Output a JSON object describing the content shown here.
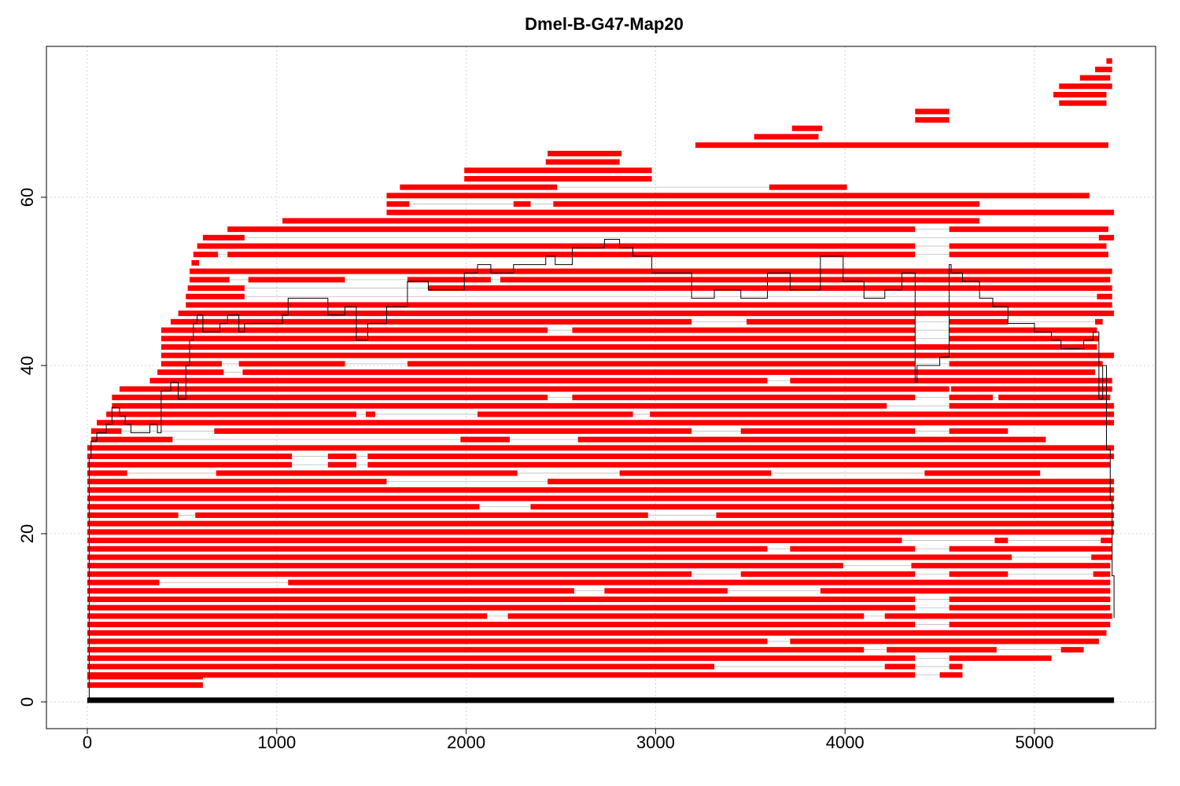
{
  "chart_data": {
    "type": "bar",
    "title": "Dmel-B-G47-Map20",
    "xlabel": "",
    "ylabel": "",
    "xlim": [
      0,
      5600
    ],
    "ylim": [
      0,
      75
    ],
    "xticks": [
      0,
      1000,
      2000,
      3000,
      4000,
      5000
    ],
    "yticks": [
      0,
      20,
      40,
      60
    ],
    "grid": true,
    "colors": {
      "segment": "#ff0000",
      "baseline": "#000000",
      "coverage": "#000000",
      "gap": "#bbbbbb"
    },
    "baseline": {
      "y": 0.2,
      "x0": 0,
      "x1": 5420
    },
    "reads": [
      {
        "y": 2.0,
        "segs": [
          [
            0,
            610
          ]
        ]
      },
      {
        "y": 3.0,
        "segs": [
          [
            0,
            610
          ]
        ]
      },
      {
        "y": 3.2,
        "segs": [
          [
            0,
            4370
          ],
          [
            4500,
            4620
          ]
        ]
      },
      {
        "y": 4.2,
        "segs": [
          [
            0,
            3310
          ],
          [
            4210,
            4370
          ],
          [
            4550,
            4620
          ]
        ]
      },
      {
        "y": 5.2,
        "segs": [
          [
            0,
            4370
          ],
          [
            4550,
            5090
          ]
        ]
      },
      {
        "y": 6.2,
        "segs": [
          [
            0,
            4100
          ],
          [
            4220,
            4800
          ],
          [
            5140,
            5260
          ]
        ]
      },
      {
        "y": 7.2,
        "segs": [
          [
            0,
            3590
          ],
          [
            3710,
            5340
          ]
        ]
      },
      {
        "y": 8.2,
        "segs": [
          [
            0,
            5380
          ]
        ]
      },
      {
        "y": 9.2,
        "segs": [
          [
            0,
            4370
          ],
          [
            4550,
            5400
          ]
        ]
      },
      {
        "y": 10.2,
        "segs": [
          [
            0,
            2110
          ],
          [
            2220,
            4100
          ],
          [
            4210,
            5410
          ]
        ]
      },
      {
        "y": 11.2,
        "segs": [
          [
            0,
            4370
          ],
          [
            4550,
            5400
          ]
        ]
      },
      {
        "y": 12.2,
        "segs": [
          [
            0,
            4370
          ],
          [
            4550,
            5400
          ]
        ]
      },
      {
        "y": 13.2,
        "segs": [
          [
            0,
            2570
          ],
          [
            2730,
            3380
          ],
          [
            3870,
            5400
          ]
        ]
      },
      {
        "y": 14.2,
        "segs": [
          [
            0,
            380
          ],
          [
            1060,
            5400
          ]
        ]
      },
      {
        "y": 15.2,
        "segs": [
          [
            0,
            3190
          ],
          [
            3450,
            4370
          ],
          [
            4550,
            4860
          ],
          [
            5310,
            5400
          ]
        ]
      },
      {
        "y": 16.2,
        "segs": [
          [
            0,
            3990
          ],
          [
            4350,
            5400
          ]
        ]
      },
      {
        "y": 17.2,
        "segs": [
          [
            0,
            4880
          ],
          [
            5300,
            5410
          ]
        ]
      },
      {
        "y": 18.2,
        "segs": [
          [
            0,
            3590
          ],
          [
            3710,
            4370
          ],
          [
            4550,
            5410
          ]
        ]
      },
      {
        "y": 19.2,
        "segs": [
          [
            0,
            4300
          ],
          [
            4790,
            4860
          ],
          [
            5350,
            5410
          ]
        ]
      },
      {
        "y": 20.2,
        "segs": [
          [
            0,
            5420
          ]
        ]
      },
      {
        "y": 21.2,
        "segs": [
          [
            0,
            5420
          ]
        ]
      },
      {
        "y": 22.2,
        "segs": [
          [
            0,
            480
          ],
          [
            570,
            2960
          ],
          [
            3320,
            5420
          ]
        ]
      },
      {
        "y": 23.2,
        "segs": [
          [
            0,
            2070
          ],
          [
            2340,
            5420
          ]
        ]
      },
      {
        "y": 24.2,
        "segs": [
          [
            0,
            5420
          ]
        ]
      },
      {
        "y": 25.2,
        "segs": [
          [
            0,
            5420
          ]
        ]
      },
      {
        "y": 26.2,
        "segs": [
          [
            0,
            1580
          ],
          [
            2430,
            5420
          ]
        ]
      },
      {
        "y": 27.2,
        "segs": [
          [
            0,
            210
          ],
          [
            680,
            2270
          ],
          [
            2810,
            3610
          ],
          [
            4420,
            5030
          ]
        ]
      },
      {
        "y": 28.2,
        "segs": [
          [
            0,
            1080
          ],
          [
            1270,
            1420
          ],
          [
            1480,
            5400
          ]
        ]
      },
      {
        "y": 29.2,
        "segs": [
          [
            0,
            1080
          ],
          [
            1270,
            1420
          ],
          [
            1480,
            5420
          ]
        ]
      },
      {
        "y": 30.2,
        "segs": [
          [
            0,
            5420
          ]
        ]
      },
      {
        "y": 31.2,
        "segs": [
          [
            20,
            450
          ],
          [
            1970,
            2230
          ],
          [
            2590,
            5060
          ]
        ]
      },
      {
        "y": 32.2,
        "segs": [
          [
            20,
            180
          ],
          [
            670,
            3190
          ],
          [
            3450,
            4370
          ],
          [
            4550,
            4860
          ]
        ]
      },
      {
        "y": 33.2,
        "segs": [
          [
            50,
            5420
          ]
        ]
      },
      {
        "y": 34.2,
        "segs": [
          [
            100,
            1420
          ],
          [
            1470,
            1520
          ],
          [
            2060,
            2880
          ],
          [
            2970,
            5420
          ]
        ]
      },
      {
        "y": 35.2,
        "segs": [
          [
            130,
            4220
          ],
          [
            4550,
            5420
          ]
        ]
      },
      {
        "y": 36.2,
        "segs": [
          [
            130,
            2430
          ],
          [
            2560,
            4370
          ],
          [
            4550,
            4780
          ],
          [
            4810,
            5400
          ]
        ]
      },
      {
        "y": 37.2,
        "segs": [
          [
            170,
            4550
          ],
          [
            4560,
            5410
          ]
        ]
      },
      {
        "y": 38.2,
        "segs": [
          [
            330,
            3590
          ],
          [
            3710,
            5410
          ]
        ]
      },
      {
        "y": 39.2,
        "segs": [
          [
            370,
            720
          ],
          [
            820,
            5320
          ]
        ]
      },
      {
        "y": 40.2,
        "segs": [
          [
            390,
            710
          ],
          [
            800,
            1360
          ],
          [
            1690,
            4370
          ],
          [
            4550,
            5360
          ]
        ]
      },
      {
        "y": 41.2,
        "segs": [
          [
            390,
            5420
          ]
        ]
      },
      {
        "y": 42.2,
        "segs": [
          [
            390,
            5330
          ]
        ]
      },
      {
        "y": 43.2,
        "segs": [
          [
            390,
            4370
          ],
          [
            4550,
            5340
          ]
        ]
      },
      {
        "y": 44.2,
        "segs": [
          [
            390,
            2430
          ],
          [
            2560,
            4370
          ],
          [
            4550,
            5330
          ]
        ]
      },
      {
        "y": 45.2,
        "segs": [
          [
            440,
            3190
          ],
          [
            3480,
            4370
          ],
          [
            4550,
            4860
          ],
          [
            5320,
            5360
          ]
        ]
      },
      {
        "y": 46.2,
        "segs": [
          [
            480,
            5420
          ]
        ]
      },
      {
        "y": 47.2,
        "segs": [
          [
            520,
            5410
          ]
        ]
      },
      {
        "y": 48.2,
        "segs": [
          [
            520,
            830
          ],
          [
            5330,
            5410
          ]
        ]
      },
      {
        "y": 49.2,
        "segs": [
          [
            530,
            830
          ],
          [
            1800,
            5410
          ]
        ]
      },
      {
        "y": 50.2,
        "segs": [
          [
            540,
            750
          ],
          [
            850,
            1360
          ],
          [
            1690,
            2130
          ],
          [
            2180,
            5400
          ]
        ]
      },
      {
        "y": 51.2,
        "segs": [
          [
            540,
            5410
          ]
        ]
      },
      {
        "y": 52.2,
        "segs": [
          [
            550,
            590
          ]
        ]
      },
      {
        "y": 53.2,
        "segs": [
          [
            560,
            690
          ],
          [
            740,
            4370
          ],
          [
            4550,
            5390
          ]
        ]
      },
      {
        "y": 54.2,
        "segs": [
          [
            580,
            4370
          ],
          [
            4550,
            5380
          ]
        ]
      },
      {
        "y": 55.2,
        "segs": [
          [
            610,
            830
          ],
          [
            5340,
            5420
          ]
        ]
      },
      {
        "y": 56.2,
        "segs": [
          [
            740,
            4370
          ],
          [
            4550,
            5390
          ]
        ]
      },
      {
        "y": 57.2,
        "segs": [
          [
            1030,
            4710
          ]
        ]
      },
      {
        "y": 58.2,
        "segs": [
          [
            1580,
            5420
          ]
        ]
      },
      {
        "y": 59.2,
        "segs": [
          [
            1580,
            1700
          ],
          [
            2250,
            2340
          ],
          [
            2460,
            4710
          ]
        ]
      },
      {
        "y": 60.2,
        "segs": [
          [
            1580,
            5290
          ]
        ]
      },
      {
        "y": 61.2,
        "segs": [
          [
            1650,
            2480
          ],
          [
            3600,
            4010
          ]
        ]
      },
      {
        "y": 62.2,
        "segs": [
          [
            1990,
            2980
          ]
        ]
      },
      {
        "y": 63.2,
        "segs": [
          [
            1990,
            2980
          ]
        ]
      },
      {
        "y": 64.2,
        "segs": [
          [
            2420,
            2810
          ]
        ]
      },
      {
        "y": 65.2,
        "segs": [
          [
            2430,
            2820
          ]
        ]
      },
      {
        "y": 66.2,
        "segs": [
          [
            3210,
            5390
          ]
        ]
      },
      {
        "y": 67.2,
        "segs": [
          [
            3520,
            3860
          ]
        ]
      },
      {
        "y": 68.2,
        "segs": [
          [
            3720,
            3880
          ]
        ]
      },
      {
        "y": 69.2,
        "segs": [
          [
            4370,
            4550
          ]
        ]
      },
      {
        "y": 70.2,
        "segs": [
          [
            4370,
            4550
          ]
        ]
      },
      {
        "y": 71.2,
        "segs": [
          [
            5130,
            5380
          ]
        ]
      },
      {
        "y": 72.2,
        "segs": [
          [
            5100,
            5380
          ]
        ]
      },
      {
        "y": 73.2,
        "segs": [
          [
            5130,
            5410
          ]
        ]
      },
      {
        "y": 74.2,
        "segs": [
          [
            5240,
            5400
          ]
        ]
      },
      {
        "y": 75.2,
        "segs": [
          [
            5320,
            5410
          ]
        ]
      },
      {
        "y": 76.2,
        "segs": [
          [
            5380,
            5410
          ]
        ]
      }
    ],
    "coverage": {
      "x": [
        0,
        10,
        20,
        50,
        100,
        130,
        170,
        200,
        230,
        330,
        370,
        390,
        440,
        480,
        520,
        540,
        560,
        580,
        610,
        700,
        740,
        800,
        830,
        1030,
        1060,
        1270,
        1360,
        1420,
        1480,
        1580,
        1690,
        1800,
        1990,
        2060,
        2130,
        2250,
        2420,
        2470,
        2560,
        2730,
        2810,
        2880,
        2980,
        3190,
        3310,
        3450,
        3590,
        3710,
        3870,
        3990,
        4100,
        4210,
        4300,
        4370,
        4380,
        4500,
        4550,
        4560,
        4620,
        4710,
        4780,
        4860,
        5000,
        5090,
        5140,
        5260,
        5310,
        5340,
        5360,
        5380,
        5400,
        5410,
        5420
      ],
      "y": [
        0,
        29,
        31,
        32,
        33,
        35,
        34,
        33,
        32,
        33,
        32,
        37,
        38,
        36,
        40,
        43,
        45,
        46,
        44,
        45,
        46,
        44,
        45,
        46,
        48,
        46,
        47,
        43,
        45,
        47,
        50,
        49,
        51,
        52,
        51,
        52,
        53,
        52,
        54,
        55,
        54,
        53,
        51,
        48,
        49,
        48,
        51,
        49,
        53,
        50,
        48,
        49,
        51,
        38,
        40,
        41,
        52,
        51,
        50,
        48,
        47,
        45,
        44,
        43,
        42,
        43,
        44,
        36,
        40,
        30,
        24,
        15,
        10
      ]
    }
  }
}
